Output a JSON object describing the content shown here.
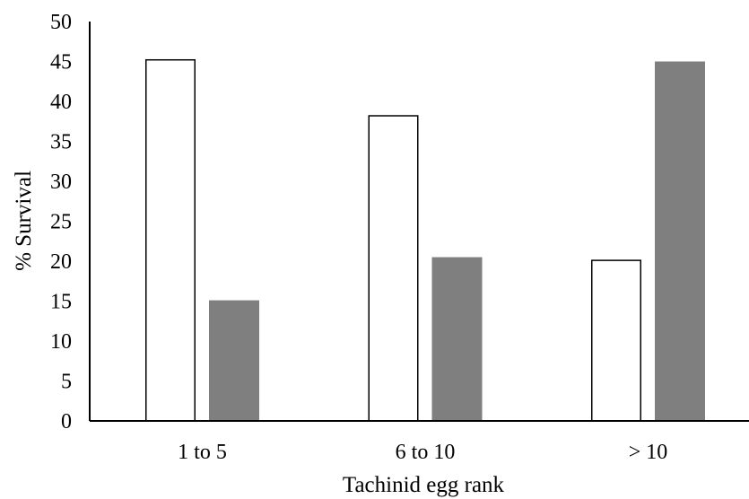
{
  "chart_data": {
    "type": "bar",
    "title": "",
    "xlabel": "Tachinid egg rank",
    "ylabel": "% Survival",
    "ylim": [
      0,
      50
    ],
    "yticks": [
      0,
      5,
      10,
      15,
      20,
      25,
      30,
      35,
      40,
      45,
      50
    ],
    "categories": [
      "1 to 5",
      "6 to 10",
      "> 10"
    ],
    "series": [
      {
        "values": [
          45.2,
          38.2,
          20.1
        ],
        "color": "#ffffff",
        "stroke": "#000000"
      },
      {
        "values": [
          15.1,
          20.5,
          45.0
        ],
        "color": "#7f7f7f",
        "stroke": "none"
      }
    ],
    "legend": "none",
    "grid": false
  }
}
